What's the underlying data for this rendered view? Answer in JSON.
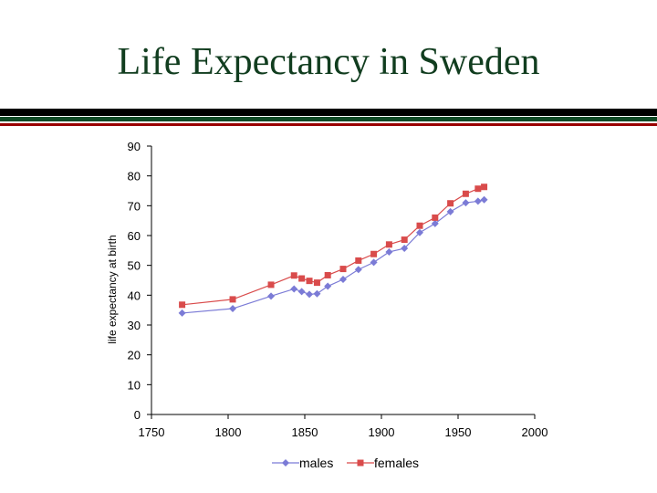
{
  "slide": {
    "title": "Life Expectancy in Sweden"
  },
  "chart_data": {
    "type": "line",
    "title": "",
    "xlabel": "",
    "ylabel": "life expectancy at birth",
    "xlim": [
      1750,
      2000
    ],
    "ylim": [
      0,
      90
    ],
    "x_ticks": [
      1750,
      1800,
      1850,
      1900,
      1950,
      2000
    ],
    "y_ticks": [
      0,
      10,
      20,
      30,
      40,
      50,
      60,
      70,
      80,
      90
    ],
    "grid": false,
    "legend_position": "bottom",
    "series": [
      {
        "name": "males",
        "color": "#7b7bd6",
        "marker": "diamond",
        "x": [
          1770,
          1803,
          1828,
          1843,
          1848,
          1853,
          1858,
          1865,
          1875,
          1885,
          1895,
          1905,
          1915,
          1925,
          1935,
          1945,
          1955,
          1963,
          1967
        ],
        "y": [
          34,
          35.5,
          39.7,
          42.1,
          41.2,
          40.3,
          40.5,
          43,
          45.3,
          48.6,
          51,
          54.5,
          55.7,
          61,
          64,
          68,
          71,
          71.5,
          72
        ]
      },
      {
        "name": "females",
        "color": "#d94b4b",
        "marker": "square",
        "x": [
          1770,
          1803,
          1828,
          1843,
          1848,
          1853,
          1858,
          1865,
          1875,
          1885,
          1895,
          1905,
          1915,
          1925,
          1935,
          1945,
          1955,
          1963,
          1967
        ],
        "y": [
          36.8,
          38.6,
          43.5,
          46.6,
          45.6,
          44.8,
          44.2,
          46.7,
          48.8,
          51.6,
          53.8,
          57,
          58.6,
          63.3,
          66,
          70.8,
          74,
          75.7,
          76.3
        ]
      }
    ]
  }
}
